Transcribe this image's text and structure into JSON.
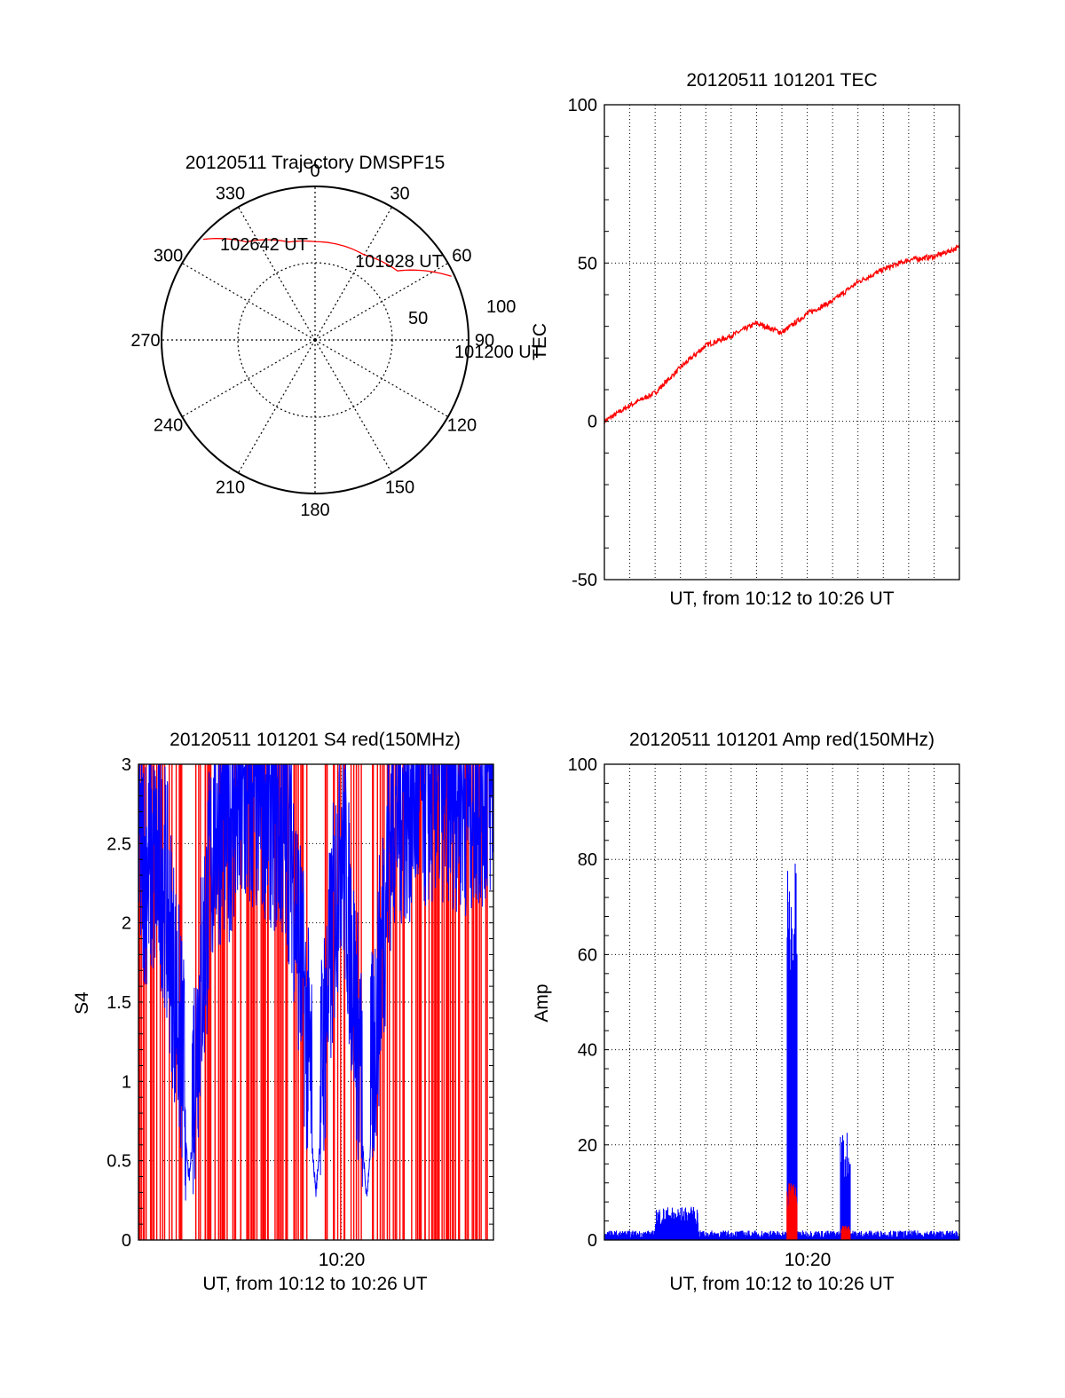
{
  "colors": {
    "red": "#ff0000",
    "blue": "#0000ff",
    "axis": "#000000",
    "grid": "#000000"
  },
  "chart_data": [
    {
      "type": "polar",
      "id": "trajectory",
      "title": "20120511 Trajectory DMSPF15",
      "angle_labels": [
        "0",
        "30",
        "60",
        "90",
        "120",
        "150",
        "180",
        "210",
        "240",
        "270",
        "300",
        "330"
      ],
      "radial_ticks": [
        "50",
        "100"
      ],
      "rlim": [
        0,
        100
      ],
      "grid": true,
      "theta_r": [
        [
          65,
          98
        ],
        [
          50,
          70
        ],
        [
          30,
          64
        ],
        [
          0,
          64
        ],
        [
          -15,
          66
        ],
        [
          -35,
          78
        ],
        [
          -48,
          98
        ]
      ],
      "point_labels": [
        {
          "text": "101200 UT",
          "theta": 65,
          "r": 98
        },
        {
          "text": "101928 UT",
          "theta": 50,
          "r": 70
        },
        {
          "text": "102642 UT",
          "theta": -48,
          "r": 98
        }
      ],
      "color": "#ff0000"
    },
    {
      "type": "line",
      "id": "tec",
      "title": "20120511 101201 TEC",
      "ylabel": "TEC",
      "xlabel": "UT, from 10:12 to 10:26 UT",
      "xlim": [
        "10:12",
        "10:26"
      ],
      "ylim": [
        -50,
        100
      ],
      "yticks": [
        "-50",
        "0",
        "50",
        "100"
      ],
      "grid": true,
      "series": [
        {
          "color": "#ff0000",
          "x": [
            "10:12",
            "10:13",
            "10:14",
            "10:15",
            "10:16",
            "10:17",
            "10:18",
            "10:19",
            "10:20",
            "10:21",
            "10:22",
            "10:23",
            "10:24",
            "10:25",
            "10:26"
          ],
          "values": [
            0,
            5,
            9,
            17,
            24,
            27,
            31,
            28,
            34,
            38,
            44,
            48,
            51,
            52,
            55
          ]
        }
      ]
    },
    {
      "type": "line",
      "id": "s4",
      "title": "20120511 101201 S4 red(150MHz)",
      "ylabel": "S4",
      "xlabel": "UT, from 10:12 to 10:26 UT",
      "xlim": [
        "10:12",
        "10:26"
      ],
      "xticks": [
        "10:20"
      ],
      "ylim": [
        0,
        3
      ],
      "yticks": [
        "0",
        "0.5",
        "1",
        "1.5",
        "2",
        "2.5",
        "3"
      ],
      "grid": true,
      "series": [
        {
          "color": "#0000ff",
          "x": [
            "10:12",
            "10:13",
            "10:14",
            "10:15",
            "10:16",
            "10:17",
            "10:18",
            "10:19",
            "10:20",
            "10:21",
            "10:22",
            "10:23",
            "10:24",
            "10:25",
            "10:26"
          ],
          "values": [
            2.1,
            2.0,
            0.38,
            2.3,
            2.4,
            2.5,
            2.2,
            0.3,
            2.3,
            0.26,
            2.4,
            2.5,
            2.6,
            2.5,
            2.6
          ]
        },
        {
          "color": "#ff0000",
          "x": [
            "10:12",
            "10:13",
            "10:14",
            "10:15",
            "10:16",
            "10:17",
            "10:18",
            "10:19",
            "10:20",
            "10:21",
            "10:22",
            "10:23",
            "10:24",
            "10:25",
            "10:26"
          ],
          "values": [
            1.5,
            1.4,
            0.3,
            1.8,
            2.0,
            2.1,
            1.9,
            0.2,
            1.9,
            0.35,
            2.0,
            2.2,
            2.3,
            2.2,
            2.4
          ]
        }
      ]
    },
    {
      "type": "line",
      "id": "amp",
      "title": "20120511 101201 Amp red(150MHz)",
      "ylabel": "Amp",
      "xlabel": "UT, from 10:12 to 10:26 UT",
      "xlim": [
        "10:12",
        "10:26"
      ],
      "xticks": [
        "10:20"
      ],
      "ylim": [
        0,
        100
      ],
      "yticks": [
        "0",
        "20",
        "40",
        "60",
        "80",
        "100"
      ],
      "grid": true,
      "series": [
        {
          "color": "#0000ff",
          "x": [
            "10:12",
            "10:13",
            "10:14",
            "10:15",
            "10:16",
            "10:17",
            "10:18",
            "10:19",
            "10:20",
            "10:21",
            "10:22",
            "10:23",
            "10:24",
            "10:25",
            "10:26"
          ],
          "values": [
            1,
            1,
            6,
            1,
            1,
            1,
            1,
            80,
            1,
            23,
            1,
            1,
            1,
            1,
            1
          ]
        },
        {
          "color": "#ff0000",
          "x": [
            "10:12",
            "10:13",
            "10:14",
            "10:15",
            "10:16",
            "10:17",
            "10:18",
            "10:19",
            "10:20",
            "10:21",
            "10:22",
            "10:23",
            "10:24",
            "10:25",
            "10:26"
          ],
          "values": [
            0.5,
            0.5,
            0.5,
            0.5,
            0.5,
            0.5,
            0.5,
            12,
            0.5,
            3,
            0.5,
            0.5,
            0.5,
            0.5,
            0.5
          ]
        }
      ]
    }
  ]
}
